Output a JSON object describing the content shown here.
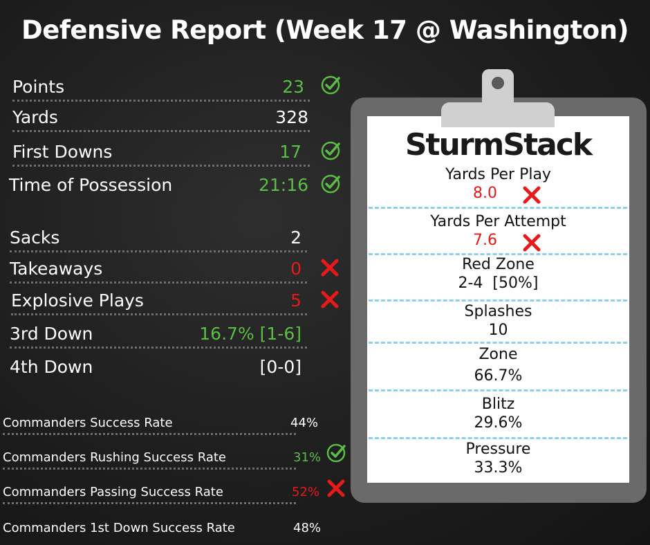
{
  "title": "Defensive Report (Week 17 @ Washington)",
  "colors": {
    "good": "#5cbd46",
    "bad": "#e81919",
    "accent_dash": "#8fcfee"
  },
  "left_stats": [
    {
      "label": "Points",
      "value": "23",
      "status": "good"
    },
    {
      "label": "Yards",
      "value": "328",
      "status": "neutral"
    },
    {
      "label": "First Downs",
      "value": "17",
      "status": "good"
    },
    {
      "label": "Time of Possession",
      "value": "21:16",
      "status": "good"
    },
    {
      "label": "Sacks",
      "value": "2",
      "status": "neutral"
    },
    {
      "label": "Takeaways",
      "value": "0",
      "status": "bad"
    },
    {
      "label": "Explosive Plays",
      "value": "5",
      "status": "bad"
    },
    {
      "label": "3rd Down",
      "value": "16.7% [1-6]",
      "status": "good-noicon"
    },
    {
      "label": "4th Down",
      "value": "[0-0]",
      "status": "neutral"
    }
  ],
  "success_rates": [
    {
      "label": "Commanders Success Rate",
      "value": "44%",
      "status": "neutral"
    },
    {
      "label": "Commanders Rushing Success Rate",
      "value": "31%",
      "status": "good"
    },
    {
      "label": "Commanders Passing Success Rate",
      "value": "52%",
      "status": "bad"
    },
    {
      "label": "Commanders 1st Down Success Rate",
      "value": "48%",
      "status": "neutral"
    }
  ],
  "clipboard": {
    "logo": "SturmStack",
    "stats": [
      {
        "label": "Yards Per Play",
        "value": "8.0",
        "status": "bad"
      },
      {
        "label": "Yards Per Attempt",
        "value": "7.6",
        "status": "bad"
      },
      {
        "label": "Red Zone",
        "value": "2-4  [50%]",
        "status": "neutral"
      },
      {
        "label": "Splashes",
        "value": "10",
        "status": "neutral"
      },
      {
        "label": "Zone",
        "value": "66.7%",
        "status": "neutral"
      },
      {
        "label": "Blitz",
        "value": "29.6%",
        "status": "neutral"
      },
      {
        "label": "Pressure",
        "value": "33.3%",
        "status": "neutral"
      }
    ]
  }
}
